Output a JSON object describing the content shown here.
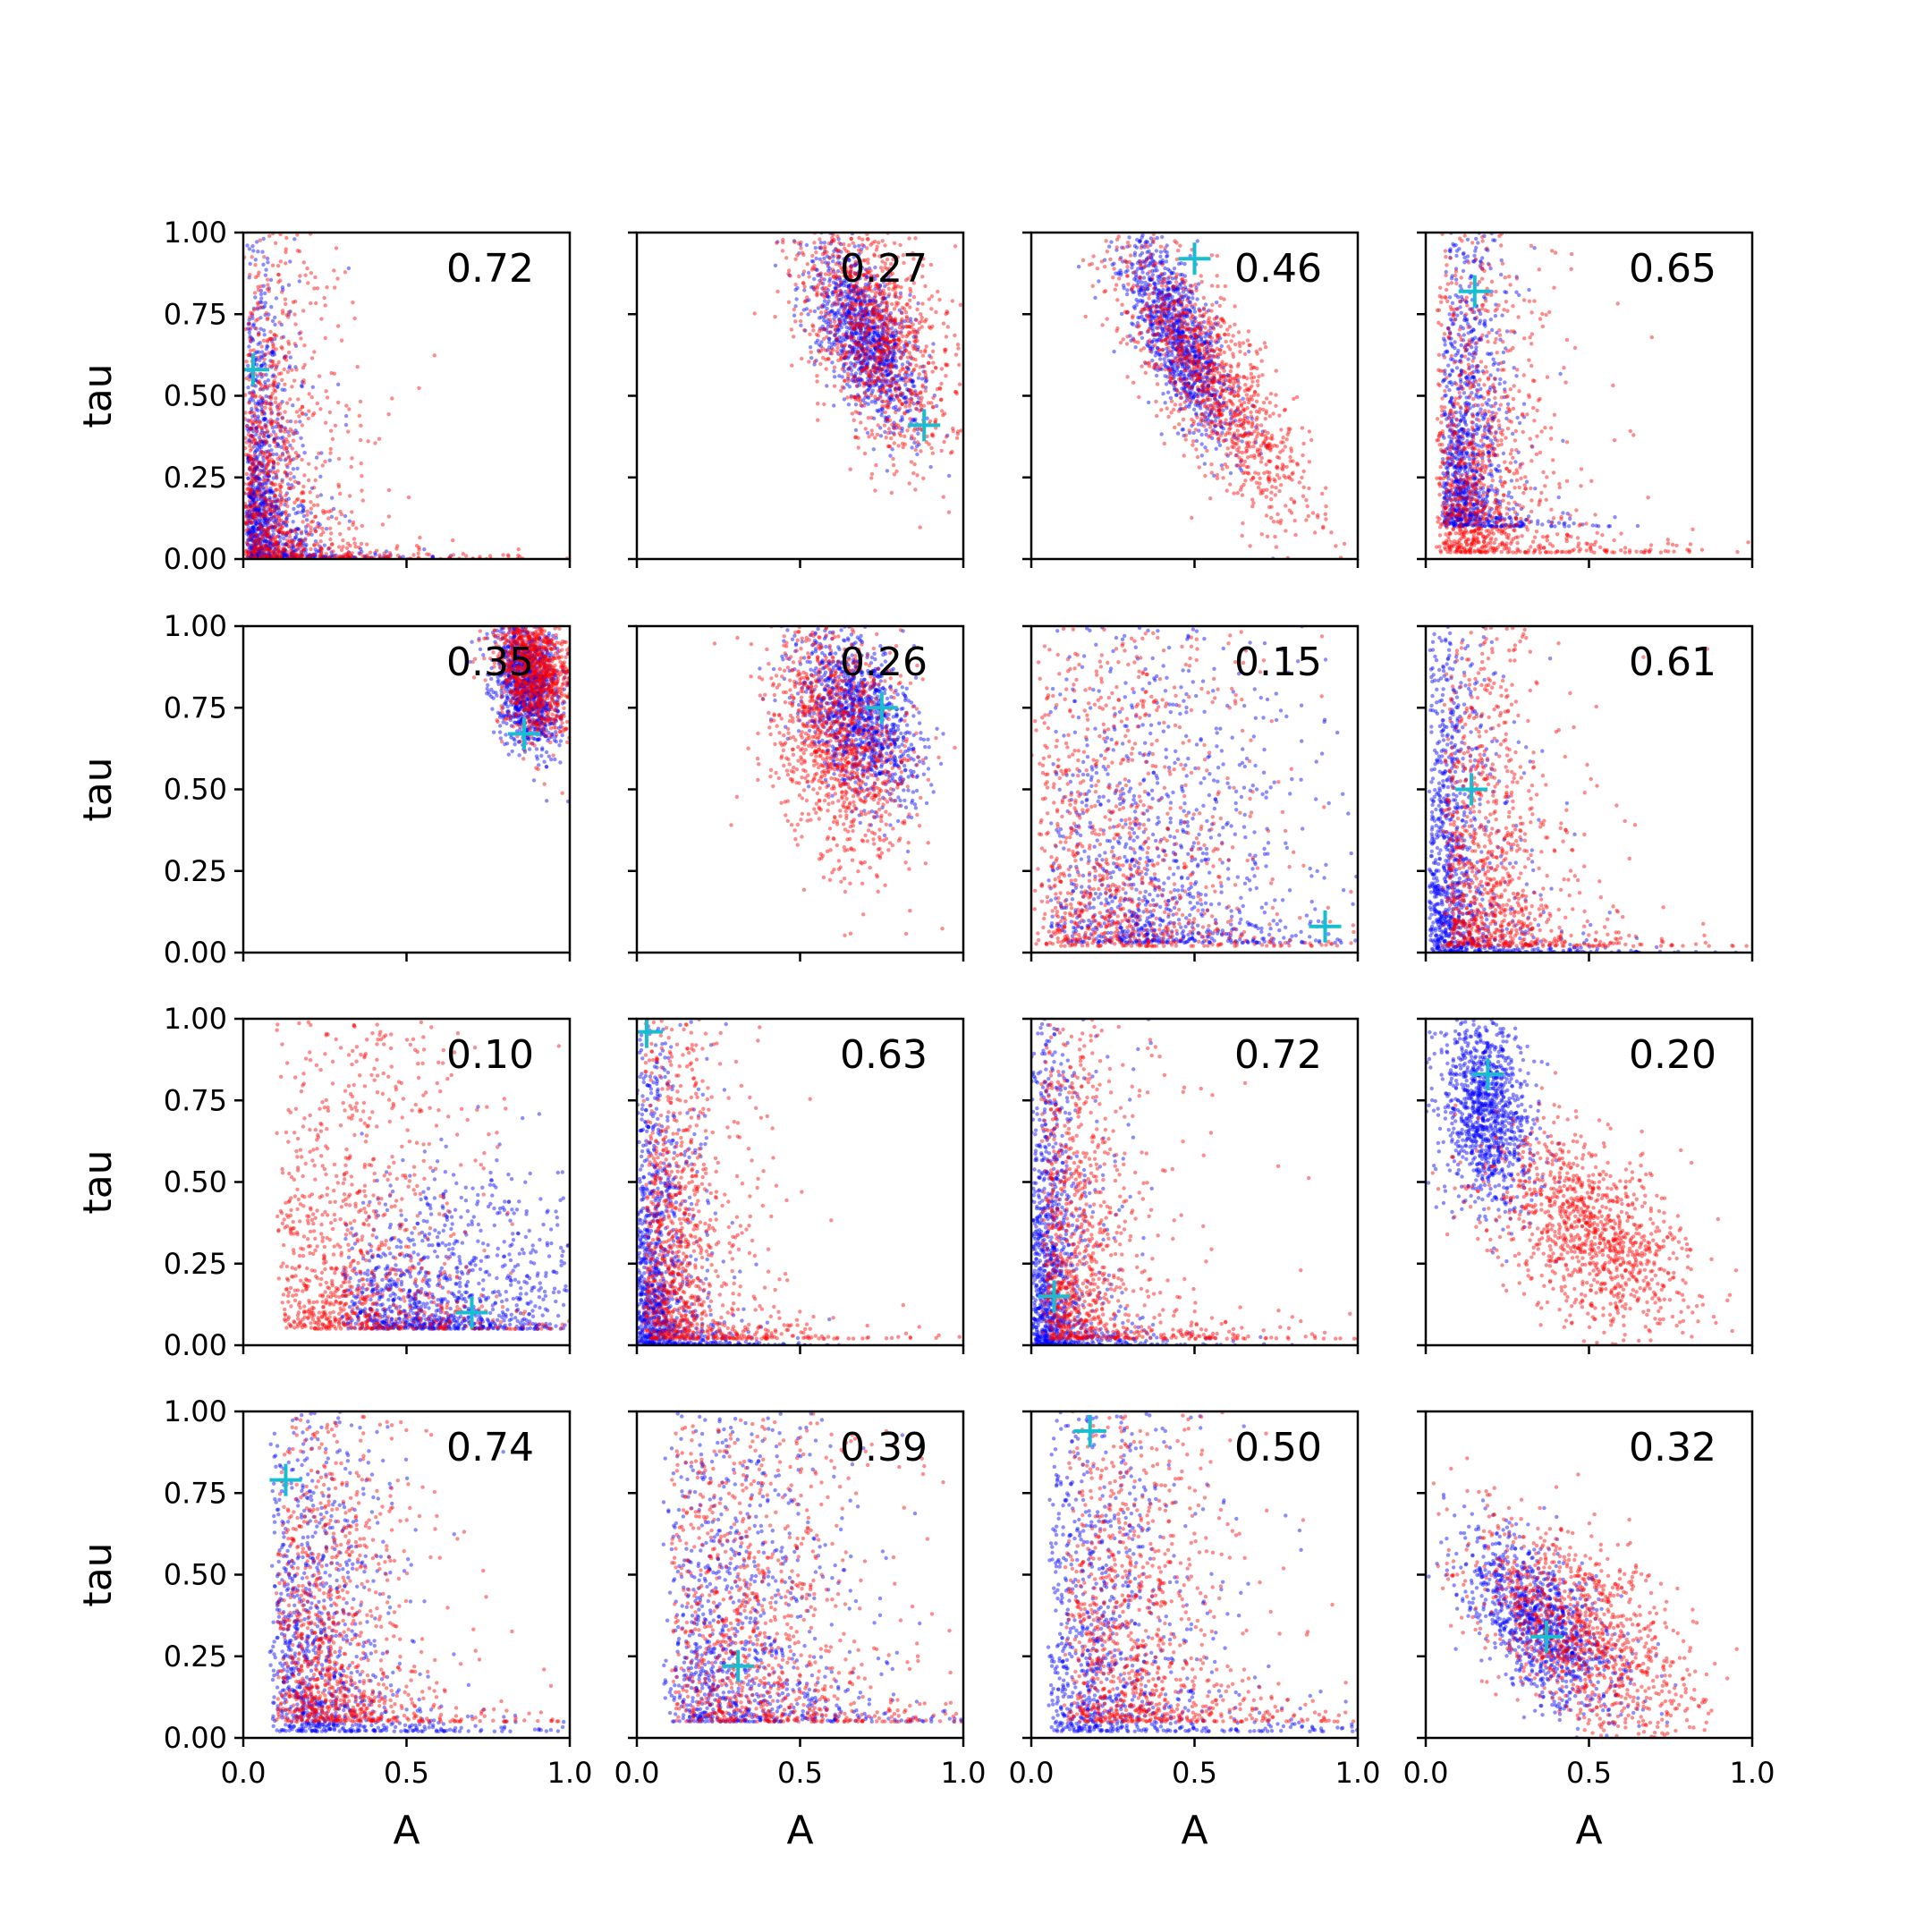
{
  "colors": {
    "blue_points": "#0000ff",
    "red_points": "#ff0000",
    "truth_marker": "#17becf",
    "axes": "#000000"
  },
  "chart_data": {
    "type": "scatter",
    "layout_grid": "4x4",
    "shared_axes": true,
    "xlabel": "A",
    "ylabel": "tau",
    "xlim": [
      0.0,
      1.0
    ],
    "ylim": [
      0.0,
      1.0
    ],
    "x_tick_labels": [
      "0.0",
      "0.5",
      "1.0"
    ],
    "y_tick_labels": [
      "0.00",
      "0.25",
      "0.50",
      "0.75",
      "1.00"
    ],
    "grid": false,
    "marker_legend": {
      "blue": "blue dots",
      "red": "red dots",
      "truth": "cyan plus"
    },
    "panels": [
      {
        "label": "0.72",
        "truth": [
          0.03,
          0.58
        ],
        "shape": "L",
        "blue": {
          "a0": 0.01,
          "ka": 0.02,
          "ascale": 0.3,
          "t0": 0.005,
          "kt": 0.02,
          "tscale": 0.35
        },
        "red": {
          "a0": 0.0,
          "ka": 0.04,
          "ascale": 0.55,
          "t0": 0.0,
          "kt": 0.05,
          "tscale": 0.55
        }
      },
      {
        "label": "0.27",
        "truth": [
          0.88,
          0.41
        ],
        "shape": "blob",
        "blue": {
          "cx": 0.7,
          "cy": 0.68,
          "sx": 0.08,
          "sy": 0.14,
          "rho": -0.6
        },
        "red": {
          "cx": 0.72,
          "cy": 0.72,
          "sx": 0.12,
          "sy": 0.2,
          "rho": -0.5
        }
      },
      {
        "label": "0.46",
        "truth": [
          0.5,
          0.92
        ],
        "shape": "blob",
        "blue": {
          "cx": 0.45,
          "cy": 0.68,
          "sx": 0.09,
          "sy": 0.17,
          "rho": -0.75
        },
        "red": {
          "cx": 0.55,
          "cy": 0.55,
          "sx": 0.15,
          "sy": 0.22,
          "rho": -0.8
        }
      },
      {
        "label": "0.65",
        "truth": [
          0.15,
          0.82
        ],
        "shape": "L",
        "blue": {
          "a0": 0.05,
          "ka": 0.06,
          "ascale": 0.25,
          "t0": 0.1,
          "kt": 0.08,
          "tscale": 0.45
        },
        "red": {
          "a0": 0.03,
          "ka": 0.08,
          "ascale": 0.6,
          "t0": 0.02,
          "kt": 0.06,
          "tscale": 0.55
        }
      },
      {
        "label": "0.35",
        "truth": [
          0.86,
          0.67
        ],
        "shape": "blob",
        "blue": {
          "cx": 0.87,
          "cy": 0.82,
          "sx": 0.05,
          "sy": 0.1,
          "rho": -0.3
        },
        "red": {
          "cx": 0.89,
          "cy": 0.88,
          "sx": 0.06,
          "sy": 0.11,
          "rho": -0.3
        }
      },
      {
        "label": "0.26",
        "truth": [
          0.75,
          0.75
        ],
        "shape": "blob",
        "blue": {
          "cx": 0.68,
          "cy": 0.72,
          "sx": 0.09,
          "sy": 0.13,
          "rho": -0.4
        },
        "red": {
          "cx": 0.62,
          "cy": 0.65,
          "sx": 0.11,
          "sy": 0.18,
          "rho": -0.3
        }
      },
      {
        "label": "0.15",
        "truth": [
          0.9,
          0.08
        ],
        "shape": "L",
        "blue": {
          "a0": 0.05,
          "ka": 0.3,
          "ascale": 0.75,
          "t0": 0.03,
          "kt": 0.12,
          "tscale": 0.5
        },
        "red": {
          "a0": 0.0,
          "ka": 0.22,
          "ascale": 0.8,
          "t0": 0.02,
          "kt": 0.15,
          "tscale": 0.65
        }
      },
      {
        "label": "0.61",
        "truth": [
          0.14,
          0.5
        ],
        "shape": "L",
        "blue": {
          "a0": 0.01,
          "ka": 0.03,
          "ascale": 0.4,
          "t0": 0.0,
          "kt": 0.03,
          "tscale": 0.5
        },
        "red": {
          "a0": 0.05,
          "ka": 0.08,
          "ascale": 0.6,
          "t0": 0.02,
          "kt": 0.06,
          "tscale": 0.55
        }
      },
      {
        "label": "0.10",
        "truth": [
          0.7,
          0.1
        ],
        "shape": "L",
        "blue": {
          "a0": 0.3,
          "ka": 0.35,
          "ascale": 0.55,
          "t0": 0.05,
          "kt": 0.25,
          "tscale": 0.2
        },
        "red": {
          "a0": 0.1,
          "ka": 0.2,
          "ascale": 0.7,
          "t0": 0.05,
          "kt": 0.15,
          "tscale": 0.55
        }
      },
      {
        "label": "0.63",
        "truth": [
          0.03,
          0.96
        ],
        "shape": "L",
        "blue": {
          "a0": 0.0,
          "ka": 0.03,
          "ascale": 0.35,
          "t0": 0.0,
          "kt": 0.02,
          "tscale": 0.45
        },
        "red": {
          "a0": 0.02,
          "ka": 0.06,
          "ascale": 0.5,
          "t0": 0.02,
          "kt": 0.05,
          "tscale": 0.55
        }
      },
      {
        "label": "0.72",
        "truth": [
          0.07,
          0.15
        ],
        "shape": "L",
        "blue": {
          "a0": 0.0,
          "ka": 0.03,
          "ascale": 0.35,
          "t0": 0.0,
          "kt": 0.03,
          "tscale": 0.45
        },
        "red": {
          "a0": 0.03,
          "ka": 0.06,
          "ascale": 0.6,
          "t0": 0.02,
          "kt": 0.05,
          "tscale": 0.55
        }
      },
      {
        "label": "0.20",
        "truth": [
          0.19,
          0.83
        ],
        "shape": "blob2",
        "blue": {
          "cx": 0.18,
          "cy": 0.72,
          "sx": 0.07,
          "sy": 0.15,
          "rho": -0.2
        },
        "red": {
          "cx": 0.5,
          "cy": 0.35,
          "sx": 0.15,
          "sy": 0.15,
          "rho": -0.5
        }
      },
      {
        "label": "0.74",
        "truth": [
          0.13,
          0.79
        ],
        "shape": "L",
        "blue": {
          "a0": 0.08,
          "ka": 0.1,
          "ascale": 0.6,
          "t0": 0.02,
          "kt": 0.1,
          "tscale": 0.55
        },
        "red": {
          "a0": 0.1,
          "ka": 0.12,
          "ascale": 0.6,
          "t0": 0.05,
          "kt": 0.1,
          "tscale": 0.55
        }
      },
      {
        "label": "0.39",
        "truth": [
          0.31,
          0.22
        ],
        "shape": "L",
        "blue": {
          "a0": 0.08,
          "ka": 0.18,
          "ascale": 0.7,
          "t0": 0.05,
          "kt": 0.15,
          "tscale": 0.65
        },
        "red": {
          "a0": 0.1,
          "ka": 0.2,
          "ascale": 0.8,
          "t0": 0.05,
          "kt": 0.2,
          "tscale": 0.6
        }
      },
      {
        "label": "0.50",
        "truth": [
          0.18,
          0.94
        ],
        "shape": "L",
        "blue": {
          "a0": 0.05,
          "ka": 0.1,
          "ascale": 0.8,
          "t0": 0.02,
          "kt": 0.1,
          "tscale": 0.6
        },
        "red": {
          "a0": 0.1,
          "ka": 0.15,
          "ascale": 0.7,
          "t0": 0.05,
          "kt": 0.15,
          "tscale": 0.6
        }
      },
      {
        "label": "0.32",
        "truth": [
          0.37,
          0.31
        ],
        "shape": "blob",
        "blue": {
          "cx": 0.35,
          "cy": 0.35,
          "sx": 0.12,
          "sy": 0.14,
          "rho": -0.6
        },
        "red": {
          "cx": 0.48,
          "cy": 0.32,
          "sx": 0.18,
          "sy": 0.18,
          "rho": -0.6
        }
      }
    ]
  }
}
